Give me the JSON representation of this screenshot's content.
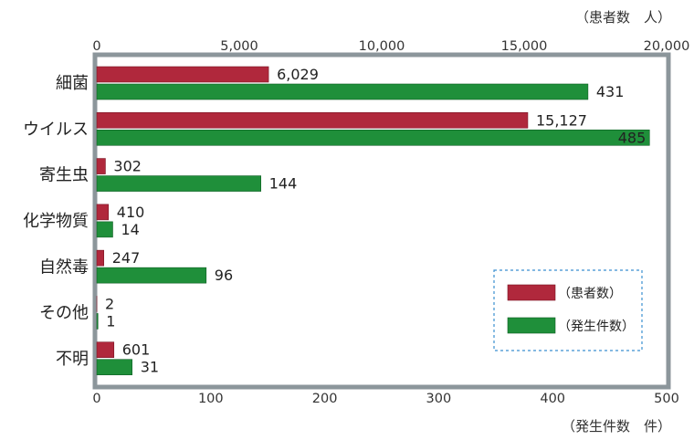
{
  "chart_data": {
    "type": "bar",
    "orientation": "horizontal",
    "categories": [
      "細菌",
      "ウイルス",
      "寄生虫",
      "化学物質",
      "自然毒",
      "その他",
      "不明"
    ],
    "series": [
      {
        "name": "（患者数）",
        "axis": "top",
        "color": "#b0283c",
        "values": [
          6029,
          15127,
          302,
          410,
          247,
          2,
          601
        ],
        "labels": [
          "6,029",
          "15,127",
          "302",
          "410",
          "247",
          "2",
          "601"
        ]
      },
      {
        "name": "（発生件数）",
        "axis": "bottom",
        "color": "#1f8f3a",
        "values": [
          431,
          485,
          144,
          14,
          96,
          1,
          31
        ],
        "labels": [
          "431",
          "485",
          "144",
          "14",
          "96",
          "1",
          "31"
        ]
      }
    ],
    "top_axis": {
      "unit_label": "（患者数　人）",
      "range": [
        0,
        20000
      ],
      "ticks": [
        {
          "value": 0,
          "label": "0"
        },
        {
          "value": 5000,
          "label": "5,000"
        },
        {
          "value": 10000,
          "label": "10,000"
        },
        {
          "value": 15000,
          "label": "15,000"
        },
        {
          "value": 20000,
          "label": "20,000"
        }
      ]
    },
    "bottom_axis": {
      "unit_label": "（発生件数　件）",
      "range": [
        0,
        500
      ],
      "ticks": [
        {
          "value": 0,
          "label": "0"
        },
        {
          "value": 100,
          "label": "100"
        },
        {
          "value": 200,
          "label": "200"
        },
        {
          "value": 300,
          "label": "300"
        },
        {
          "value": 400,
          "label": "400"
        },
        {
          "value": 500,
          "label": "500"
        }
      ]
    },
    "grid": false,
    "legend_position": "right-middle",
    "frame_color": "#8c969b"
  }
}
